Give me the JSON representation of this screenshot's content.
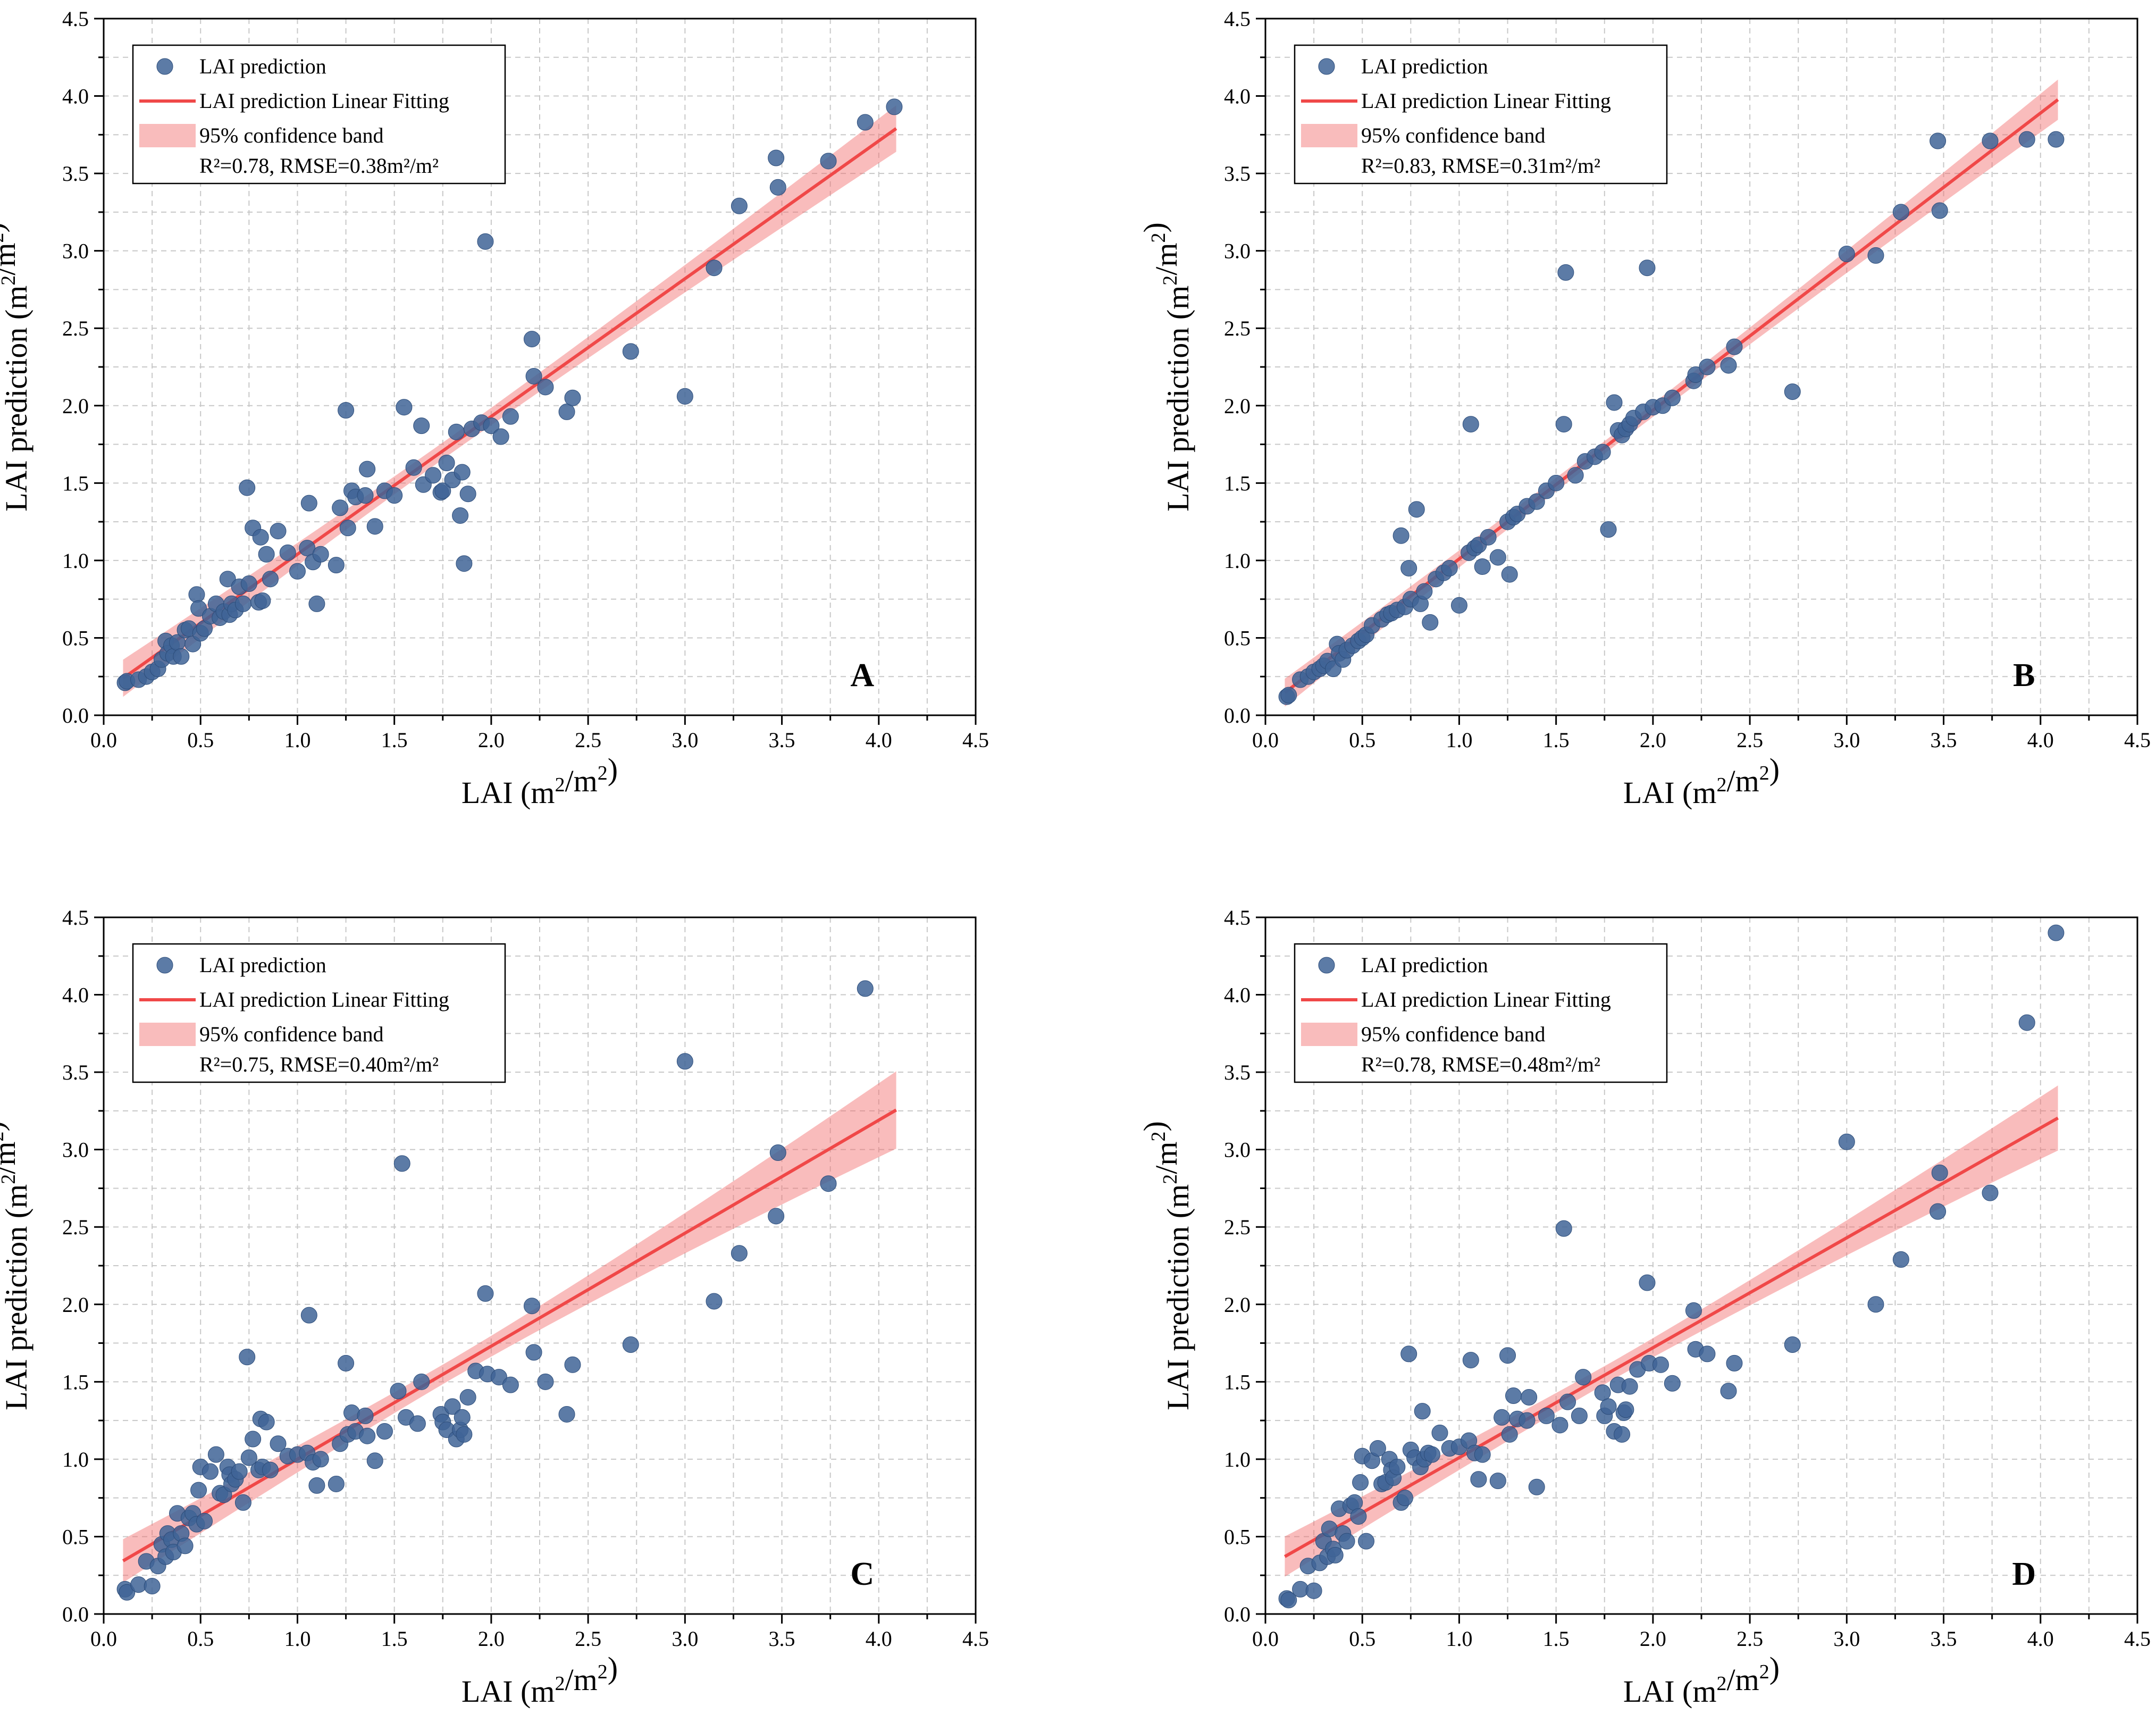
{
  "chart_data": [
    {
      "type": "scatter",
      "panel_label": "A",
      "xlabel": "LAI (m2/m2)",
      "ylabel": "LAI prediction (m2/m2)",
      "xlim": [
        0,
        4.5
      ],
      "ylim": [
        0,
        4.5
      ],
      "xticks": [
        0.0,
        0.5,
        1.0,
        1.5,
        2.0,
        2.5,
        3.0,
        3.5,
        4.0,
        4.5
      ],
      "yticks": [
        0.0,
        0.5,
        1.0,
        1.5,
        2.0,
        2.5,
        3.0,
        3.5,
        4.0,
        4.5
      ],
      "grid": true,
      "legend_position": "top-left",
      "legend": {
        "points": "LAI prediction",
        "fit": "LAI prediction Linear Fitting",
        "band": "95% confidence band",
        "stats": "R²=0.78, RMSE=0.38m²/m²"
      },
      "fit": {
        "slope": 0.89,
        "intercept": 0.15,
        "x_range": [
          0.1,
          4.09
        ]
      },
      "band_halfwidth_ends": [
        0.12,
        0.15
      ],
      "series": [
        {
          "name": "LAI prediction",
          "x": [
            0.11,
            0.12,
            0.18,
            0.22,
            0.25,
            0.28,
            0.3,
            0.32,
            0.33,
            0.35,
            0.36,
            0.38,
            0.4,
            0.42,
            0.44,
            0.46,
            0.48,
            0.49,
            0.5,
            0.52,
            0.55,
            0.58,
            0.6,
            0.62,
            0.64,
            0.65,
            0.66,
            0.68,
            0.7,
            0.72,
            0.74,
            0.75,
            0.77,
            0.8,
            0.81,
            0.82,
            0.84,
            0.86,
            0.9,
            0.95,
            1.0,
            1.05,
            1.06,
            1.08,
            1.1,
            1.12,
            1.2,
            1.22,
            1.25,
            1.26,
            1.28,
            1.3,
            1.35,
            1.36,
            1.4,
            1.45,
            1.5,
            1.55,
            1.6,
            1.64,
            1.65,
            1.7,
            1.74,
            1.75,
            1.77,
            1.8,
            1.82,
            1.84,
            1.85,
            1.86,
            1.88,
            1.9,
            1.95,
            1.97,
            2.0,
            2.05,
            2.1,
            2.21,
            2.22,
            2.28,
            2.39,
            2.42,
            2.72,
            3.0,
            3.15,
            3.28,
            3.47,
            3.48,
            3.74,
            3.93,
            4.08
          ],
          "y": [
            0.21,
            0.22,
            0.23,
            0.25,
            0.28,
            0.3,
            0.36,
            0.48,
            0.4,
            0.45,
            0.38,
            0.47,
            0.38,
            0.55,
            0.56,
            0.46,
            0.78,
            0.69,
            0.53,
            0.56,
            0.64,
            0.72,
            0.63,
            0.67,
            0.88,
            0.65,
            0.72,
            0.68,
            0.83,
            0.72,
            1.47,
            0.85,
            1.21,
            0.73,
            1.15,
            0.74,
            1.04,
            0.88,
            1.19,
            1.05,
            0.93,
            1.08,
            1.37,
            0.99,
            0.72,
            1.04,
            0.97,
            1.34,
            1.97,
            1.21,
            1.45,
            1.41,
            1.42,
            1.59,
            1.22,
            1.45,
            1.42,
            1.99,
            1.6,
            1.87,
            1.49,
            1.55,
            1.44,
            1.45,
            1.63,
            1.52,
            1.83,
            1.29,
            1.57,
            0.98,
            1.43,
            1.85,
            1.89,
            3.06,
            1.87,
            1.8,
            1.93,
            2.43,
            2.19,
            2.12,
            1.96,
            2.05,
            2.35,
            2.06,
            2.89,
            3.29,
            3.6,
            3.41,
            3.58,
            3.83,
            3.93
          ]
        }
      ]
    },
    {
      "type": "scatter",
      "panel_label": "B",
      "xlabel": "LAI (m2/m2)",
      "ylabel": "LAI prediction (m2/m2)",
      "xlim": [
        0,
        4.5
      ],
      "ylim": [
        0,
        4.5
      ],
      "xticks": [
        0.0,
        0.5,
        1.0,
        1.5,
        2.0,
        2.5,
        3.0,
        3.5,
        4.0,
        4.5
      ],
      "yticks": [
        0.0,
        0.5,
        1.0,
        1.5,
        2.0,
        2.5,
        3.0,
        3.5,
        4.0,
        4.5
      ],
      "grid": true,
      "legend_position": "top-left",
      "legend": {
        "points": "LAI prediction",
        "fit": "LAI prediction Linear Fitting",
        "band": "95% confidence band",
        "stats": "R²=0.83, RMSE=0.31m²/m²"
      },
      "fit": {
        "slope": 0.96,
        "intercept": 0.05,
        "x_range": [
          0.1,
          4.09
        ]
      },
      "band_halfwidth_ends": [
        0.09,
        0.13
      ],
      "series": [
        {
          "name": "LAI prediction",
          "x": [
            0.11,
            0.12,
            0.18,
            0.22,
            0.25,
            0.28,
            0.3,
            0.32,
            0.35,
            0.37,
            0.38,
            0.4,
            0.42,
            0.45,
            0.48,
            0.5,
            0.52,
            0.55,
            0.6,
            0.63,
            0.65,
            0.68,
            0.7,
            0.72,
            0.74,
            0.75,
            0.78,
            0.8,
            0.82,
            0.85,
            0.88,
            0.92,
            0.95,
            1.0,
            1.05,
            1.06,
            1.08,
            1.1,
            1.12,
            1.15,
            1.2,
            1.25,
            1.26,
            1.28,
            1.3,
            1.35,
            1.4,
            1.45,
            1.5,
            1.54,
            1.55,
            1.6,
            1.65,
            1.7,
            1.74,
            1.77,
            1.8,
            1.82,
            1.84,
            1.86,
            1.88,
            1.9,
            1.95,
            1.97,
            2.0,
            2.05,
            2.1,
            2.21,
            2.22,
            2.28,
            2.39,
            2.42,
            2.72,
            3.0,
            3.15,
            3.28,
            3.47,
            3.48,
            3.74,
            3.93,
            4.08
          ],
          "y": [
            0.12,
            0.13,
            0.23,
            0.25,
            0.28,
            0.3,
            0.32,
            0.35,
            0.3,
            0.46,
            0.4,
            0.36,
            0.42,
            0.45,
            0.48,
            0.5,
            0.52,
            0.58,
            0.62,
            0.65,
            0.66,
            0.68,
            1.16,
            0.7,
            0.95,
            0.75,
            1.33,
            0.72,
            0.8,
            0.6,
            0.88,
            0.92,
            0.95,
            0.71,
            1.05,
            1.88,
            1.08,
            1.1,
            0.96,
            1.15,
            1.02,
            1.25,
            0.91,
            1.28,
            1.3,
            1.35,
            1.38,
            1.45,
            1.5,
            1.88,
            2.86,
            1.55,
            1.64,
            1.67,
            1.7,
            1.2,
            2.02,
            1.84,
            1.81,
            1.85,
            1.88,
            1.92,
            1.96,
            2.89,
            1.99,
            2.0,
            2.05,
            2.16,
            2.2,
            2.25,
            2.26,
            2.38,
            2.09,
            2.98,
            2.97,
            3.25,
            3.71,
            3.26,
            3.71,
            3.72,
            3.72
          ]
        }
      ]
    },
    {
      "type": "scatter",
      "panel_label": "C",
      "xlabel": "LAI (m2/m2)",
      "ylabel": "LAI prediction (m2/m2)",
      "xlim": [
        0,
        4.5
      ],
      "ylim": [
        0,
        4.5
      ],
      "xticks": [
        0.0,
        0.5,
        1.0,
        1.5,
        2.0,
        2.5,
        3.0,
        3.5,
        4.0,
        4.5
      ],
      "yticks": [
        0.0,
        0.5,
        1.0,
        1.5,
        2.0,
        2.5,
        3.0,
        3.5,
        4.0,
        4.5
      ],
      "grid": true,
      "legend_position": "top-left",
      "legend": {
        "points": "LAI prediction",
        "fit": "LAI prediction Linear Fitting",
        "band": "95% confidence band",
        "stats": "R²=0.75, RMSE=0.40m²/m²"
      },
      "fit": {
        "slope": 0.73,
        "intercept": 0.27,
        "x_range": [
          0.1,
          4.09
        ]
      },
      "band_halfwidth_ends": [
        0.14,
        0.25
      ],
      "series": [
        {
          "name": "LAI prediction",
          "x": [
            0.11,
            0.12,
            0.18,
            0.22,
            0.25,
            0.28,
            0.3,
            0.32,
            0.33,
            0.35,
            0.36,
            0.38,
            0.4,
            0.42,
            0.44,
            0.46,
            0.48,
            0.49,
            0.5,
            0.52,
            0.55,
            0.58,
            0.6,
            0.62,
            0.64,
            0.65,
            0.66,
            0.68,
            0.7,
            0.72,
            0.74,
            0.75,
            0.77,
            0.8,
            0.81,
            0.82,
            0.84,
            0.86,
            0.9,
            0.95,
            1.0,
            1.05,
            1.06,
            1.08,
            1.1,
            1.12,
            1.2,
            1.22,
            1.25,
            1.26,
            1.28,
            1.3,
            1.35,
            1.36,
            1.4,
            1.45,
            1.52,
            1.54,
            1.56,
            1.62,
            1.64,
            1.74,
            1.75,
            1.77,
            1.8,
            1.82,
            1.84,
            1.85,
            1.86,
            1.88,
            1.92,
            1.97,
            1.98,
            2.04,
            2.1,
            2.21,
            2.22,
            2.28,
            2.39,
            2.42,
            2.72,
            3.0,
            3.15,
            3.28,
            3.47,
            3.48,
            3.74,
            3.93
          ],
          "y": [
            0.16,
            0.14,
            0.19,
            0.34,
            0.18,
            0.31,
            0.45,
            0.37,
            0.52,
            0.48,
            0.4,
            0.65,
            0.52,
            0.44,
            0.62,
            0.65,
            0.58,
            0.8,
            0.95,
            0.6,
            0.92,
            1.03,
            0.78,
            0.77,
            0.95,
            0.9,
            0.84,
            0.87,
            0.92,
            0.72,
            1.66,
            1.01,
            1.13,
            0.93,
            1.26,
            0.95,
            1.24,
            0.93,
            1.1,
            1.02,
            1.03,
            1.04,
            1.93,
            0.98,
            0.83,
            1.0,
            0.84,
            1.1,
            1.62,
            1.16,
            1.3,
            1.18,
            1.28,
            1.15,
            0.99,
            1.18,
            1.44,
            2.91,
            1.27,
            1.23,
            1.5,
            1.29,
            1.24,
            1.19,
            1.34,
            1.13,
            1.19,
            1.27,
            1.16,
            1.4,
            1.57,
            2.07,
            1.55,
            1.53,
            1.48,
            1.99,
            1.69,
            1.5,
            1.29,
            1.61,
            1.74,
            3.57,
            2.02,
            2.33,
            2.57,
            2.98,
            2.78,
            4.04
          ]
        }
      ]
    },
    {
      "type": "scatter",
      "panel_label": "D",
      "xlabel": "LAI (m2/m2)",
      "ylabel": "LAI prediction (m2/m2)",
      "xlim": [
        0,
        4.5
      ],
      "ylim": [
        0,
        4.5
      ],
      "xticks": [
        0.0,
        0.5,
        1.0,
        1.5,
        2.0,
        2.5,
        3.0,
        3.5,
        4.0,
        4.5
      ],
      "yticks": [
        0.0,
        0.5,
        1.0,
        1.5,
        2.0,
        2.5,
        3.0,
        3.5,
        4.0,
        4.5
      ],
      "grid": true,
      "legend_position": "top-left",
      "legend": {
        "points": "LAI prediction",
        "fit": "LAI prediction Linear Fitting",
        "band": "95% confidence band",
        "stats": "R²=0.78, RMSE=0.48m²/m²"
      },
      "fit": {
        "slope": 0.71,
        "intercept": 0.3,
        "x_range": [
          0.1,
          4.09
        ]
      },
      "band_halfwidth_ends": [
        0.13,
        0.21
      ],
      "series": [
        {
          "name": "LAI prediction",
          "x": [
            0.11,
            0.12,
            0.18,
            0.22,
            0.25,
            0.28,
            0.3,
            0.32,
            0.33,
            0.35,
            0.36,
            0.38,
            0.4,
            0.42,
            0.44,
            0.46,
            0.48,
            0.49,
            0.5,
            0.52,
            0.55,
            0.58,
            0.6,
            0.62,
            0.64,
            0.65,
            0.66,
            0.68,
            0.7,
            0.72,
            0.74,
            0.75,
            0.77,
            0.8,
            0.81,
            0.82,
            0.84,
            0.86,
            0.9,
            0.95,
            1.0,
            1.05,
            1.06,
            1.08,
            1.1,
            1.12,
            1.2,
            1.22,
            1.25,
            1.26,
            1.28,
            1.3,
            1.35,
            1.36,
            1.4,
            1.45,
            1.52,
            1.54,
            1.56,
            1.62,
            1.64,
            1.74,
            1.75,
            1.77,
            1.8,
            1.82,
            1.84,
            1.85,
            1.86,
            1.88,
            1.92,
            1.97,
            1.98,
            2.04,
            2.1,
            2.21,
            2.22,
            2.28,
            2.39,
            2.42,
            2.72,
            3.0,
            3.15,
            3.28,
            3.47,
            3.48,
            3.74,
            3.93,
            4.08
          ],
          "y": [
            0.1,
            0.09,
            0.16,
            0.31,
            0.15,
            0.33,
            0.47,
            0.37,
            0.55,
            0.42,
            0.38,
            0.68,
            0.52,
            0.47,
            0.7,
            0.72,
            0.63,
            0.85,
            1.02,
            0.47,
            0.99,
            1.07,
            0.84,
            0.85,
            1.0,
            0.93,
            0.88,
            0.95,
            0.72,
            0.75,
            1.68,
            1.06,
            1.01,
            0.95,
            1.31,
            1.0,
            1.04,
            1.03,
            1.17,
            1.07,
            1.08,
            1.12,
            1.64,
            1.04,
            0.87,
            1.03,
            0.86,
            1.27,
            1.67,
            1.16,
            1.41,
            1.26,
            1.25,
            1.4,
            0.82,
            1.28,
            1.22,
            2.49,
            1.37,
            1.28,
            1.53,
            1.43,
            1.28,
            1.34,
            1.18,
            1.48,
            1.16,
            1.3,
            1.32,
            1.47,
            1.58,
            2.14,
            1.62,
            1.61,
            1.49,
            1.96,
            1.71,
            1.68,
            1.44,
            1.62,
            1.74,
            3.05,
            2.0,
            2.29,
            2.6,
            2.85,
            2.72,
            3.82,
            4.4
          ]
        }
      ]
    }
  ]
}
